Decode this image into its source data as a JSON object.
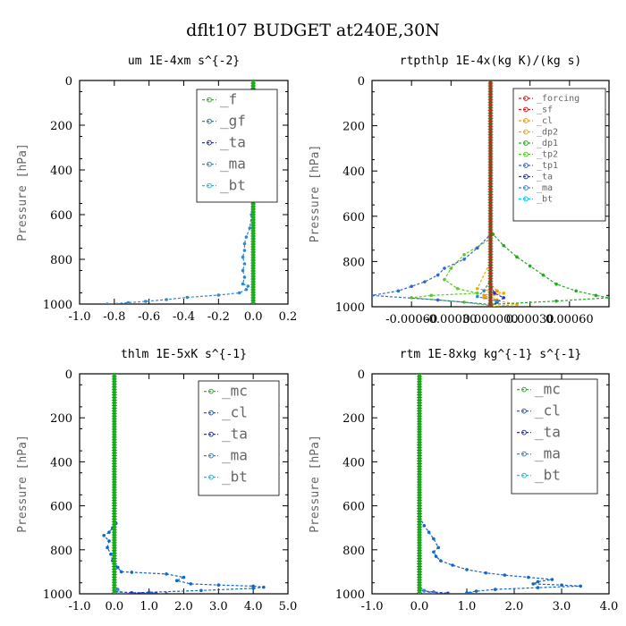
{
  "title": "dflt107  BUDGET at240E,30N",
  "colors": {
    "f": "#22bb22",
    "gf": "#228899",
    "ta": "#2233cc",
    "ma": "#3388cc",
    "bt": "#00ccee",
    "mc": "#22bb22",
    "cl": "#1166cc",
    "forcing": "#cc2222",
    "sf": "#cc2222",
    "rcl": "#ee9900",
    "dp2": "#eeaa00",
    "dp1": "#22aa22",
    "tp2": "#55cc22",
    "tp1": "#3366cc",
    "rta": "#2233cc",
    "rma": "#3388cc",
    "rbt": "#00ccee"
  },
  "chart_data": [
    {
      "type": "line",
      "title": "um  1E-4xm s^{-2}",
      "ylabel": "Pressure [hPa]",
      "xlim": [
        -1.0,
        0.2
      ],
      "ylim": [
        1000,
        0
      ],
      "xticks": [
        "-1.0",
        "-0.8",
        "-0.6",
        "-0.4",
        "-0.2",
        "0.0",
        "0.2"
      ],
      "yticks": [
        "0",
        "200",
        "400",
        "600",
        "800",
        "1000"
      ],
      "legend_position": "top-right",
      "series": [
        {
          "name": "_f",
          "color_key": "f",
          "x": [
            0,
            0,
            0,
            0,
            0,
            0
          ],
          "y": [
            0,
            200,
            400,
            600,
            800,
            1000
          ]
        },
        {
          "name": "_gf",
          "color_key": "gf",
          "x": [
            0,
            0,
            0,
            0,
            0,
            0
          ],
          "y": [
            0,
            200,
            400,
            600,
            800,
            1000
          ]
        },
        {
          "name": "_ta",
          "color_key": "ta",
          "x": [
            0,
            0,
            0,
            0,
            0,
            0
          ],
          "y": [
            0,
            200,
            400,
            600,
            800,
            1000
          ]
        },
        {
          "name": "_ma",
          "color_key": "ma",
          "x": [
            0,
            0,
            0,
            -0.005,
            -0.01,
            -0.02,
            -0.04,
            -0.05,
            -0.05,
            -0.06,
            -0.05,
            -0.06,
            -0.05,
            -0.06,
            -0.03,
            -0.04,
            -0.08,
            -0.2,
            -0.38,
            -0.5,
            -0.62,
            -0.72,
            -0.84
          ],
          "y": [
            0,
            200,
            400,
            500,
            600,
            660,
            700,
            730,
            760,
            790,
            820,
            850,
            880,
            910,
            920,
            935,
            950,
            960,
            970,
            980,
            988,
            994,
            1000
          ]
        },
        {
          "name": "_bt",
          "color_key": "bt",
          "x": [
            0,
            0,
            0,
            0,
            0,
            0
          ],
          "y": [
            0,
            200,
            400,
            600,
            800,
            1000
          ]
        }
      ]
    },
    {
      "type": "line",
      "title": "rtpthlp  1E-4x(kg K)/(kg s)",
      "ylabel": "Pressure [hPa]",
      "xlim": [
        -0.0009,
        0.0009
      ],
      "ylim": [
        1000,
        0
      ],
      "xticks": [
        "-0.00060",
        "-0.00030",
        "0.000000",
        "0.00030",
        "0.00060"
      ],
      "yticks": [
        "0",
        "200",
        "400",
        "600",
        "800",
        "1000"
      ],
      "legend_position": "top-right",
      "series": [
        {
          "name": "_forcing",
          "color_key": "forcing",
          "x": [
            0,
            0,
            0,
            0,
            0,
            0
          ],
          "y": [
            0,
            200,
            400,
            600,
            800,
            1000
          ]
        },
        {
          "name": "_sf",
          "color_key": "sf",
          "x": [
            0,
            0,
            0,
            0,
            0,
            0
          ],
          "y": [
            0,
            200,
            400,
            600,
            800,
            1000
          ]
        },
        {
          "name": "_cl",
          "color_key": "rcl",
          "x": [
            0,
            0,
            0,
            5e-05,
            -5e-05,
            5e-05,
            0
          ],
          "y": [
            0,
            700,
            900,
            930,
            950,
            970,
            1000
          ]
        },
        {
          "name": "_dp2",
          "color_key": "dp2",
          "x": [
            0,
            0,
            -0.0001,
            0.0001,
            -5e-05,
            0.0002,
            0
          ],
          "y": [
            0,
            800,
            920,
            940,
            960,
            990,
            1000
          ]
        },
        {
          "name": "_dp1",
          "color_key": "dp1",
          "x": [
            0,
            0,
            2e-05,
            0.0001,
            0.0002,
            0.0003,
            0.0004,
            0.0005,
            0.00065,
            0.0008,
            0.0009,
            0.0005,
            0
          ],
          "y": [
            0,
            650,
            680,
            730,
            780,
            820,
            860,
            900,
            930,
            950,
            960,
            975,
            990
          ]
        },
        {
          "name": "_tp2",
          "color_key": "tp2",
          "x": [
            0,
            0,
            -0.0002,
            -0.0003,
            -0.00035,
            -0.00025,
            -0.0001,
            -0.00045,
            -0.0006,
            -0.0002,
            0
          ],
          "y": [
            0,
            700,
            770,
            830,
            880,
            920,
            940,
            950,
            960,
            980,
            995
          ]
        },
        {
          "name": "_tp1",
          "color_key": "tp1",
          "x": [
            0,
            0,
            -0.0001,
            -0.0002,
            -0.00035,
            -0.0004,
            -0.0005,
            -0.0006,
            -0.0007,
            -0.0009,
            -0.0004,
            0
          ],
          "y": [
            0,
            680,
            740,
            790,
            830,
            860,
            890,
            910,
            930,
            950,
            970,
            990
          ]
        },
        {
          "name": "_ta",
          "color_key": "rta",
          "x": [
            0,
            0,
            3e-05,
            0.0001,
            5e-05,
            0
          ],
          "y": [
            0,
            900,
            940,
            960,
            980,
            1000
          ]
        },
        {
          "name": "_ma",
          "color_key": "rma",
          "x": [
            0,
            0,
            -5e-05,
            -0.0001,
            5e-05,
            0
          ],
          "y": [
            0,
            880,
            930,
            955,
            975,
            1000
          ]
        },
        {
          "name": "_bt",
          "color_key": "rbt",
          "x": [
            0,
            0,
            0,
            0,
            0,
            0
          ],
          "y": [
            0,
            200,
            400,
            600,
            800,
            1000
          ]
        }
      ]
    },
    {
      "type": "line",
      "title": "thlm  1E-5xK s^{-1}",
      "ylabel": "Pressure [hPa]",
      "xlim": [
        -1.0,
        5.0
      ],
      "ylim": [
        1000,
        0
      ],
      "xticks": [
        "-1.0",
        "0.0",
        "1.0",
        "2.0",
        "3.0",
        "4.0",
        "5.0"
      ],
      "yticks": [
        "0",
        "200",
        "400",
        "600",
        "800",
        "1000"
      ],
      "legend_position": "top-right",
      "series": [
        {
          "name": "_mc",
          "color_key": "mc",
          "x": [
            0,
            0,
            0,
            0,
            0,
            0
          ],
          "y": [
            0,
            200,
            400,
            600,
            800,
            1000
          ]
        },
        {
          "name": "_cl",
          "color_key": "cl",
          "x": [
            0,
            0,
            0.05,
            -0.05,
            -0.15,
            -0.3,
            -0.15,
            -0.2,
            -0.1,
            -0.05,
            0.1,
            0.2,
            0.5,
            1.5,
            2.0,
            1.8,
            2.2,
            3.0,
            4.0,
            4.3,
            4.0,
            2.5,
            1.0,
            0.2
          ],
          "y": [
            0,
            650,
            680,
            700,
            720,
            735,
            760,
            790,
            820,
            850,
            880,
            900,
            902,
            910,
            925,
            940,
            955,
            960,
            965,
            970,
            975,
            985,
            993,
            1000
          ]
        },
        {
          "name": "_ta",
          "color_key": "ta",
          "x": [
            0,
            0,
            0.5,
            1.2,
            0.8,
            1.5
          ],
          "y": [
            0,
            990,
            995,
            997,
            999,
            1000
          ]
        },
        {
          "name": "_ma",
          "color_key": "ma",
          "x": [
            0,
            0,
            0.1,
            0.2,
            0
          ],
          "y": [
            0,
            960,
            980,
            995,
            1000
          ]
        },
        {
          "name": "_bt",
          "color_key": "bt",
          "x": [
            0,
            0,
            0,
            0,
            0,
            0
          ],
          "y": [
            0,
            200,
            400,
            600,
            800,
            1000
          ]
        }
      ]
    },
    {
      "type": "line",
      "title": "rtm  1E-8xkg kg^{-1} s^{-1}",
      "ylabel": "Pressure [hPa]",
      "xlim": [
        -1.0,
        4.0
      ],
      "ylim": [
        1000,
        0
      ],
      "xticks": [
        "-1.0",
        "0.0",
        "1.0",
        "2.0",
        "3.0",
        "4.0"
      ],
      "yticks": [
        "0",
        "200",
        "400",
        "600",
        "800",
        "1000"
      ],
      "legend_position": "top-right",
      "series": [
        {
          "name": "_mc",
          "color_key": "mc",
          "x": [
            0,
            0,
            0,
            0,
            0,
            0
          ],
          "y": [
            0,
            200,
            400,
            600,
            800,
            1000
          ]
        },
        {
          "name": "_cl",
          "color_key": "cl",
          "x": [
            0,
            0,
            0.1,
            0.2,
            0.3,
            0.4,
            0.3,
            0.35,
            0.45,
            0.7,
            1.0,
            1.4,
            1.8,
            2.3,
            2.8,
            2.5,
            2.4,
            3.0,
            3.4,
            2.5,
            1.6,
            1.2,
            1.0,
            1.1
          ],
          "y": [
            0,
            650,
            690,
            720,
            750,
            790,
            810,
            830,
            850,
            870,
            890,
            905,
            915,
            925,
            935,
            945,
            955,
            960,
            965,
            972,
            980,
            988,
            995,
            1000
          ]
        },
        {
          "name": "_ta",
          "color_key": "ta",
          "x": [
            0,
            0,
            0.3,
            0.6,
            0.2
          ],
          "y": [
            0,
            985,
            992,
            997,
            1000
          ]
        },
        {
          "name": "_ma",
          "color_key": "ma",
          "x": [
            0,
            0,
            0.1,
            0.3,
            0.1
          ],
          "y": [
            0,
            970,
            985,
            995,
            1000
          ]
        },
        {
          "name": "_bt",
          "color_key": "bt",
          "x": [
            0,
            0,
            0,
            0,
            0,
            0
          ],
          "y": [
            0,
            200,
            400,
            600,
            800,
            1000
          ]
        }
      ]
    }
  ]
}
